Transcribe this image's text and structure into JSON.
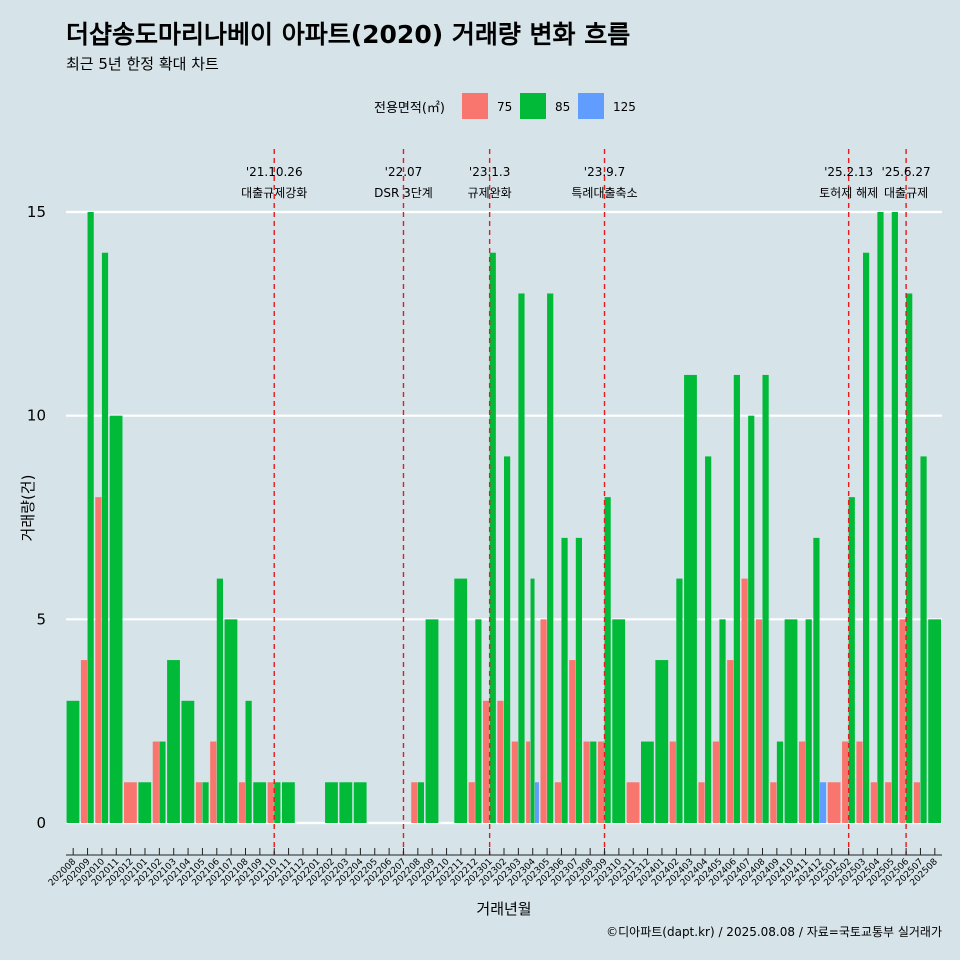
{
  "chart_data": {
    "type": "bar",
    "title": "더샵송도마리나베이 아파트(2020) 거래량 변화 흐름",
    "subtitle": "최근 5년 한정 확대 차트",
    "xlabel": "거래년월",
    "ylabel": "거래량(건)",
    "ylim": [
      0,
      16
    ],
    "yticks": [
      0,
      5,
      10,
      15
    ],
    "grid": "horizontal",
    "legend": {
      "title": "전용면적(㎡)",
      "position": "top"
    },
    "caption": "©디아파트(dapt.kr) / 2025.08.08 / 자료=국토교통부 실거래가",
    "categories": [
      "202008",
      "202009",
      "202010",
      "202011",
      "202012",
      "202101",
      "202102",
      "202103",
      "202104",
      "202105",
      "202106",
      "202107",
      "202108",
      "202109",
      "202110",
      "202111",
      "202112",
      "202201",
      "202202",
      "202203",
      "202204",
      "202205",
      "202206",
      "202207",
      "202208",
      "202209",
      "202210",
      "202211",
      "202212",
      "202301",
      "202302",
      "202303",
      "202304",
      "202305",
      "202306",
      "202307",
      "202308",
      "202309",
      "202310",
      "202311",
      "202312",
      "202401",
      "202402",
      "202403",
      "202404",
      "202405",
      "202406",
      "202407",
      "202408",
      "202409",
      "202410",
      "202411",
      "202412",
      "202501",
      "202502",
      "202503",
      "202504",
      "202505",
      "202506",
      "202507",
      "202508"
    ],
    "series": [
      {
        "name": "75",
        "color": "#f8766d",
        "values": [
          0,
          4,
          8,
          0,
          1,
          0,
          2,
          0,
          0,
          1,
          2,
          0,
          1,
          0,
          1,
          0,
          0,
          0,
          0,
          0,
          0,
          0,
          0,
          0,
          1,
          0,
          0,
          0,
          1,
          3,
          3,
          2,
          2,
          5,
          1,
          4,
          2,
          2,
          0,
          1,
          0,
          0,
          2,
          0,
          1,
          2,
          4,
          6,
          5,
          1,
          0,
          2,
          0,
          1,
          2,
          2,
          1,
          1,
          5,
          1,
          0
        ]
      },
      {
        "name": "85",
        "color": "#00ba38",
        "values": [
          3,
          15,
          14,
          10,
          0,
          1,
          2,
          4,
          3,
          1,
          6,
          5,
          3,
          1,
          1,
          1,
          0,
          0,
          1,
          1,
          1,
          0,
          0,
          0,
          1,
          5,
          0,
          6,
          5,
          14,
          9,
          13,
          6,
          13,
          7,
          7,
          2,
          8,
          5,
          0,
          2,
          4,
          6,
          11,
          9,
          5,
          11,
          10,
          11,
          2,
          5,
          5,
          7,
          0,
          8,
          14,
          15,
          15,
          13,
          9,
          5
        ]
      },
      {
        "name": "125",
        "color": "#619cff",
        "values": [
          0,
          0,
          0,
          0,
          0,
          0,
          0,
          0,
          0,
          0,
          0,
          0,
          0,
          0,
          0,
          0,
          0,
          0,
          0,
          0,
          0,
          0,
          0,
          0,
          0,
          0,
          0,
          0,
          0,
          0,
          0,
          0,
          1,
          0,
          0,
          0,
          0,
          0,
          0,
          0,
          0,
          0,
          0,
          0,
          0,
          0,
          0,
          0,
          0,
          0,
          0,
          0,
          1,
          0,
          0,
          0,
          0,
          0,
          0,
          0,
          0
        ]
      }
    ],
    "events": [
      {
        "month": "202110",
        "date": "'21.10.26",
        "label": "대출규제강화"
      },
      {
        "month": "202207",
        "date": "'22.07",
        "label": "DSR 3단계"
      },
      {
        "month": "202301",
        "date": "'23.1.3",
        "label": "규제완화"
      },
      {
        "month": "202309",
        "date": "'23.9.7",
        "label": "특례대출축소"
      },
      {
        "month": "202502",
        "date": "'25.2.13",
        "label": "토허제 해제"
      },
      {
        "month": "202506",
        "date": "'25.6.27",
        "label": "대출규제"
      }
    ]
  }
}
